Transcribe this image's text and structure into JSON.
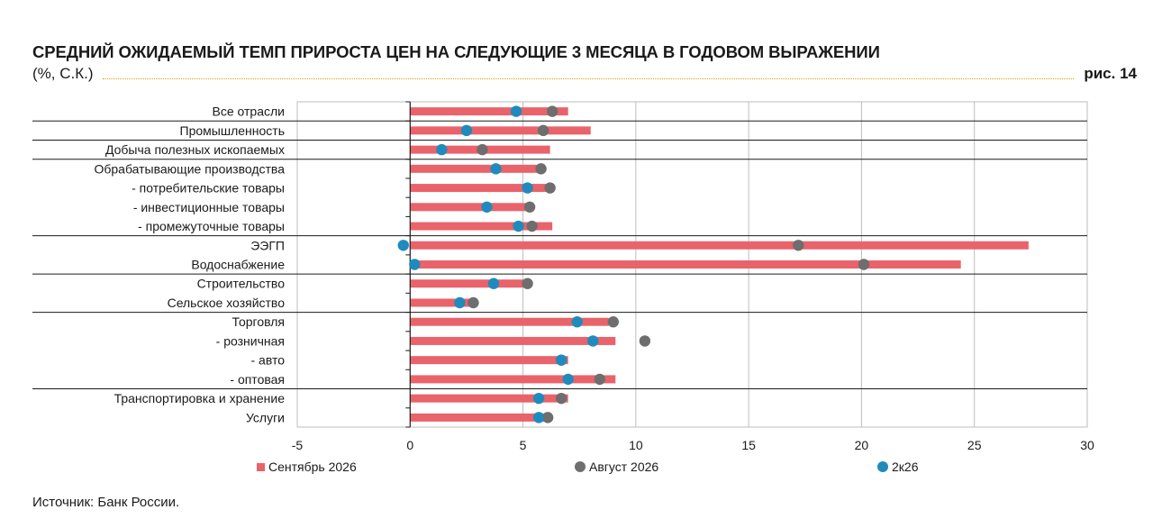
{
  "header": {
    "title": "СРЕДНИЙ ОЖИДАЕМЫЙ ТЕМП ПРИРОСТА ЦЕН НА СЛЕДУЮЩИЕ 3 МЕСЯЦА В ГОДОВОМ ВЫРАЖЕНИИ",
    "subtitle": "(%, С.К.)",
    "figure_label": "рис. 14"
  },
  "source": "Источник: Банк России.",
  "colors": {
    "bar": "#e9636b",
    "august": "#6e6e6e",
    "q2": "#1f8bbd",
    "grid": "#bdbdbd"
  },
  "chart_data": {
    "type": "bar",
    "orientation": "horizontal",
    "categories": [
      "Все отрасли",
      "Промышленность",
      "Добыча полезных ископаемых",
      "Обрабатывающие производства",
      "- потребительские товары",
      "- инвестиционные товары",
      "- промежуточные товары",
      "ЭЭГП",
      "Водоснабжение",
      "Строительство",
      "Сельское хозяйство",
      "Торговля",
      "- розничная",
      "- авто",
      "- оптовая",
      "Транспортировка и хранение",
      "Услуги"
    ],
    "group_separators_after": [
      0,
      1,
      2,
      6,
      8,
      10,
      14
    ],
    "series": [
      {
        "name": "Сентябрь 2026",
        "mark": "bar",
        "values": [
          7.0,
          8.0,
          6.2,
          5.8,
          6.3,
          5.4,
          6.3,
          27.4,
          24.4,
          5.2,
          2.8,
          8.8,
          9.1,
          7.0,
          9.1,
          7.0,
          6.2
        ]
      },
      {
        "name": "Август 2026",
        "mark": "dot",
        "values": [
          6.3,
          5.9,
          3.2,
          5.8,
          6.2,
          5.3,
          5.4,
          17.2,
          20.1,
          5.2,
          2.8,
          9.0,
          10.4,
          6.7,
          8.4,
          6.7,
          6.1
        ]
      },
      {
        "name": "2к26",
        "mark": "dot",
        "values": [
          4.7,
          2.5,
          1.4,
          3.8,
          5.2,
          3.4,
          4.8,
          -0.3,
          0.2,
          3.7,
          2.2,
          7.4,
          8.1,
          6.7,
          7.0,
          5.7,
          5.7
        ]
      }
    ],
    "xlim": [
      -5,
      30
    ],
    "xticks": [
      "-5",
      "0",
      "5",
      "10",
      "15",
      "20",
      "25",
      "30"
    ],
    "grid": true,
    "legend_position": "bottom"
  }
}
